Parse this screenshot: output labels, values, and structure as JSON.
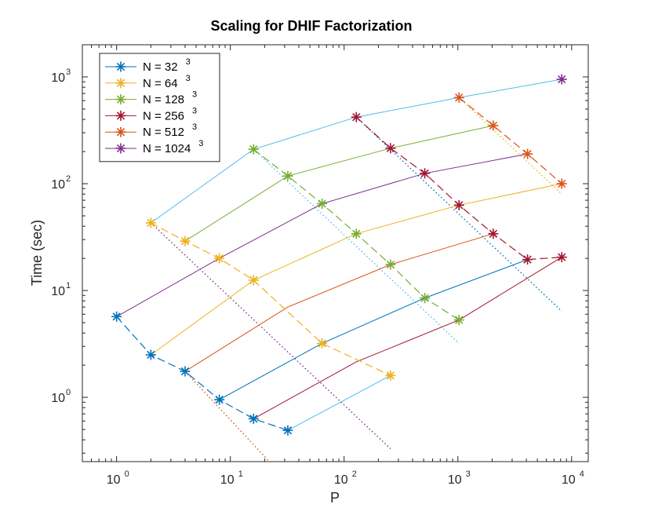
{
  "chart_data": {
    "type": "line",
    "title": "Scaling for DHIF Factorization",
    "xlabel": "P",
    "ylabel": "Time (sec)",
    "xscale": "log",
    "yscale": "log",
    "xlim": [
      0.5,
      14000
    ],
    "ylim": [
      0.25,
      2000
    ],
    "xticks": [
      {
        "base": "10",
        "exp": "0",
        "value": 1
      },
      {
        "base": "10",
        "exp": "1",
        "value": 10
      },
      {
        "base": "10",
        "exp": "2",
        "value": 100
      },
      {
        "base": "10",
        "exp": "3",
        "value": 1000
      },
      {
        "base": "10",
        "exp": "4",
        "value": 10000
      }
    ],
    "yticks": [
      {
        "base": "10",
        "exp": "0",
        "value": 1
      },
      {
        "base": "10",
        "exp": "1",
        "value": 10
      },
      {
        "base": "10",
        "exp": "2",
        "value": 100
      },
      {
        "base": "10",
        "exp": "3",
        "value": 1000
      }
    ],
    "legend_position": "top-left",
    "series": [
      {
        "name": "N = 32",
        "sup": "3",
        "color": "#0072BD",
        "style": "dashed",
        "x": [
          1,
          2,
          4,
          8,
          16,
          32
        ],
        "y": [
          5.7,
          2.5,
          1.75,
          0.95,
          0.63,
          0.49
        ]
      },
      {
        "name": "N = 64",
        "sup": "3",
        "color": "#EDB120",
        "style": "dashed",
        "x": [
          2,
          4,
          8,
          16,
          64,
          256
        ],
        "y": [
          43,
          29,
          20,
          12.5,
          3.2,
          1.6
        ]
      },
      {
        "name": "N = 128",
        "sup": "3",
        "color": "#77AC30",
        "style": "dashed",
        "x": [
          16,
          32,
          64,
          128,
          256,
          512,
          1024
        ],
        "y": [
          210,
          118,
          65,
          34,
          17.5,
          8.5,
          5.3
        ]
      },
      {
        "name": "N = 256",
        "sup": "3",
        "color": "#A2142F",
        "style": "dashed",
        "x": [
          128,
          256,
          512,
          1024,
          2048,
          4096,
          8192
        ],
        "y": [
          420,
          215,
          125,
          63,
          34,
          19.5,
          20.5
        ]
      },
      {
        "name": "N = 512",
        "sup": "3",
        "color": "#D95319",
        "style": "dashed",
        "x": [
          1024,
          2048,
          4096,
          8192
        ],
        "y": [
          640,
          350,
          190,
          100
        ]
      },
      {
        "name": "N = 1024",
        "sup": "3",
        "color": "#7E2F8E",
        "style": "none",
        "x": [
          8192
        ],
        "y": [
          950
        ]
      }
    ],
    "weak_scaling": [
      {
        "color": "#4DBEEE",
        "x": [
          2,
          16,
          128,
          1024,
          8192
        ],
        "y": [
          43,
          210,
          420,
          640,
          950
        ]
      },
      {
        "color": "#77AC30",
        "x": [
          4,
          32,
          256,
          2048
        ],
        "y": [
          29,
          118,
          215,
          350
        ]
      },
      {
        "color": "#7E2F8E",
        "x": [
          1,
          8,
          64,
          512,
          4096
        ],
        "y": [
          5.7,
          20,
          65,
          125,
          190
        ]
      },
      {
        "color": "#EDB120",
        "x": [
          2,
          16,
          128,
          1024,
          8192
        ],
        "y": [
          2.5,
          12.5,
          34,
          63,
          100
        ]
      },
      {
        "color": "#D95319",
        "x": [
          4,
          32,
          256,
          2048
        ],
        "y": [
          1.75,
          7,
          17.5,
          34
        ]
      },
      {
        "color": "#0072BD",
        "x": [
          8,
          64,
          512,
          4096
        ],
        "y": [
          0.95,
          3.2,
          8.5,
          19.5
        ]
      },
      {
        "color": "#A2142F",
        "x": [
          16,
          128,
          1024,
          8192
        ],
        "y": [
          0.63,
          2.15,
          5.3,
          20.5
        ]
      },
      {
        "color": "#4DBEEE",
        "x": [
          32,
          256
        ],
        "y": [
          0.49,
          1.6
        ]
      }
    ],
    "ideal_lines": [
      {
        "color": "#D95319",
        "x": [
          4,
          22
        ],
        "y": [
          1.75,
          0.25
        ]
      },
      {
        "color": "#7E2F8E",
        "x": [
          2,
          256
        ],
        "y": [
          43,
          0.33
        ]
      },
      {
        "color": "#4DBEEE",
        "x": [
          16,
          1024
        ],
        "y": [
          210,
          3.2
        ]
      },
      {
        "color": "#0072BD",
        "x": [
          128,
          8192
        ],
        "y": [
          420,
          6.4
        ]
      },
      {
        "color": "#EDB120",
        "x": [
          1024,
          8192
        ],
        "y": [
          640,
          80
        ]
      }
    ]
  }
}
